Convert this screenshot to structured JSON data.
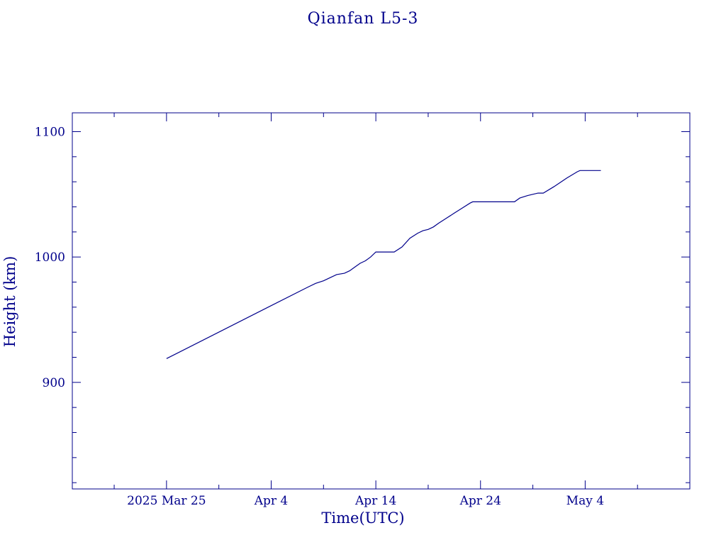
{
  "chart_data": {
    "type": "line",
    "title": "Qianfan L5-3",
    "xlabel": "Time(UTC)",
    "ylabel": "Height (km)",
    "x_ticks": [
      {
        "x": "2025-03-25",
        "label": "2025 Mar 25"
      },
      {
        "x": "2025-04-04",
        "label": "Apr  4"
      },
      {
        "x": "2025-04-14",
        "label": "Apr 14"
      },
      {
        "x": "2025-04-24",
        "label": "Apr 24"
      },
      {
        "x": "2025-05-04",
        "label": "May  4"
      }
    ],
    "xlim": [
      "2025-03-16T00:00",
      "2025-05-14T00:00"
    ],
    "ylim": [
      815,
      1115
    ],
    "y_ticks": [
      900,
      1000,
      1100
    ],
    "y_tick_labels": [
      "900",
      "1000",
      "1100"
    ],
    "grid": false,
    "color": "#00008b",
    "series": [
      {
        "points": [
          [
            "2025-03-25T00:00",
            919
          ],
          [
            "2025-04-07T12:00",
            976
          ],
          [
            "2025-04-08T06:00",
            979
          ],
          [
            "2025-04-09T00:00",
            981
          ],
          [
            "2025-04-09T12:00",
            983
          ],
          [
            "2025-04-10T06:00",
            986
          ],
          [
            "2025-04-11T00:00",
            987
          ],
          [
            "2025-04-11T12:00",
            989
          ],
          [
            "2025-04-12T00:00",
            992
          ],
          [
            "2025-04-12T12:00",
            995
          ],
          [
            "2025-04-13T00:00",
            997
          ],
          [
            "2025-04-13T12:00",
            1000
          ],
          [
            "2025-04-14T00:00",
            1004
          ],
          [
            "2025-04-15T18:00",
            1004
          ],
          [
            "2025-04-16T12:00",
            1008
          ],
          [
            "2025-04-17T06:00",
            1015
          ],
          [
            "2025-04-18T00:00",
            1019
          ],
          [
            "2025-04-18T12:00",
            1021
          ],
          [
            "2025-04-19T00:00",
            1022
          ],
          [
            "2025-04-19T12:00",
            1024
          ],
          [
            "2025-04-20T00:00",
            1027
          ],
          [
            "2025-04-20T18:00",
            1031
          ],
          [
            "2025-04-21T12:00",
            1035
          ],
          [
            "2025-04-22T06:00",
            1039
          ],
          [
            "2025-04-23T00:00",
            1043
          ],
          [
            "2025-04-23T06:00",
            1044
          ],
          [
            "2025-04-27T06:00",
            1044
          ],
          [
            "2025-04-27T18:00",
            1047
          ],
          [
            "2025-04-28T12:00",
            1049
          ],
          [
            "2025-04-29T12:00",
            1051
          ],
          [
            "2025-04-30T00:00",
            1051
          ],
          [
            "2025-05-01T00:00",
            1056
          ],
          [
            "2025-05-02T06:00",
            1063
          ],
          [
            "2025-05-03T06:00",
            1068
          ],
          [
            "2025-05-03T12:00",
            1069
          ],
          [
            "2025-05-05T12:00",
            1069
          ]
        ]
      }
    ]
  }
}
